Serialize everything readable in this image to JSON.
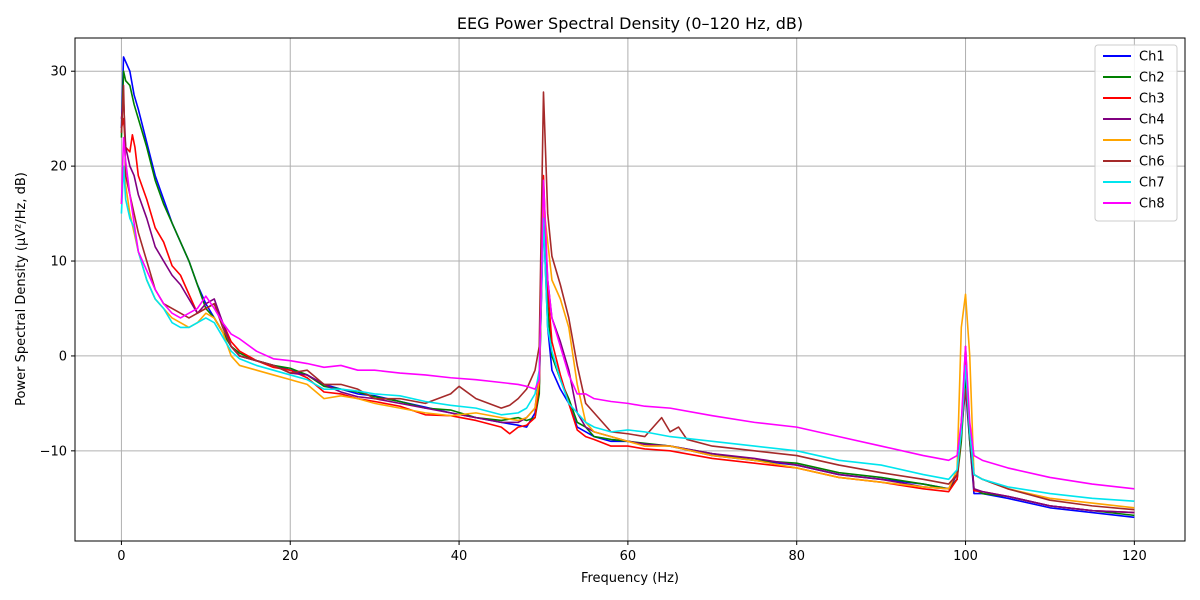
{
  "chart_data": {
    "type": "line",
    "title": "EEG Power Spectral Density (0–120 Hz, dB)",
    "xlabel": "Frequency (Hz)",
    "ylabel": "Power Spectral Density (µV²/Hz, dB)",
    "xlim": [
      -5.5,
      126
    ],
    "ylim": [
      -19.5,
      33.5
    ],
    "xticks": [
      0,
      20,
      40,
      60,
      80,
      100,
      120
    ],
    "xtick_labels": [
      "0",
      "20",
      "40",
      "60",
      "80",
      "100",
      "120"
    ],
    "yticks": [
      -10,
      0,
      10,
      20,
      30
    ],
    "ytick_labels": [
      "−10",
      "0",
      "10",
      "20",
      "30"
    ],
    "grid": true,
    "legend_position": "top-right",
    "series": [
      {
        "name": "Ch1",
        "color": "#0000ff",
        "x": [
          0,
          0.25,
          0.5,
          1,
          1.5,
          2,
          3,
          4,
          5,
          6,
          7,
          8,
          9,
          10,
          11,
          12,
          13,
          14,
          16,
          18,
          20,
          22,
          24,
          26,
          28,
          30,
          33,
          36,
          39,
          42,
          45,
          47,
          48,
          49,
          49.5,
          50,
          50.5,
          51,
          52,
          53,
          54,
          55,
          56,
          58,
          60,
          62,
          65,
          70,
          75,
          80,
          85,
          90,
          95,
          98,
          99,
          99.5,
          100,
          100.5,
          101,
          102,
          105,
          110,
          115,
          120
        ],
        "y": [
          24,
          31.5,
          31,
          30,
          27.5,
          26,
          22.5,
          19,
          16.5,
          14,
          12,
          10,
          7.5,
          5.5,
          4,
          2.5,
          1,
          0,
          -0.5,
          -1,
          -1.5,
          -2,
          -3,
          -3.5,
          -4,
          -4.2,
          -4.8,
          -5.4,
          -6,
          -6.5,
          -7,
          -7.3,
          -7.5,
          -6,
          -3,
          14.5,
          3,
          -1.5,
          -3.5,
          -5,
          -7.5,
          -8,
          -8.5,
          -9,
          -9,
          -9.3,
          -9.5,
          -10.5,
          -11,
          -11.5,
          -12.5,
          -13,
          -13.5,
          -14,
          -13,
          -8,
          -3.5,
          -9,
          -14.5,
          -14.5,
          -15,
          -16,
          -16.5,
          -17
        ]
      },
      {
        "name": "Ch2",
        "color": "#008000",
        "x": [
          0,
          0.25,
          0.5,
          1,
          1.5,
          2,
          3,
          4,
          5,
          6,
          7,
          8,
          9,
          10,
          11,
          12,
          13,
          14,
          16,
          18,
          20,
          22,
          24,
          26,
          28,
          30,
          33,
          36,
          39,
          42,
          45,
          47,
          48,
          49,
          49.5,
          50,
          50.5,
          51,
          52,
          53,
          54,
          55,
          56,
          58,
          60,
          62,
          65,
          70,
          75,
          80,
          85,
          90,
          95,
          98,
          99,
          99.5,
          100,
          100.5,
          101,
          102,
          105,
          110,
          115,
          120
        ],
        "y": [
          23,
          30,
          29,
          28.5,
          26.5,
          25,
          22,
          18.5,
          16,
          14,
          12,
          10,
          7.5,
          5,
          4,
          2.5,
          1,
          0.3,
          -0.5,
          -1,
          -1.3,
          -2,
          -3.2,
          -3.5,
          -3.8,
          -4.3,
          -4.8,
          -5.5,
          -5.7,
          -6.5,
          -6.8,
          -6.5,
          -6.8,
          -6.5,
          -4,
          17,
          5,
          0,
          -2.5,
          -4.5,
          -7,
          -7.5,
          -8.5,
          -8.8,
          -9,
          -9.2,
          -9.5,
          -10.3,
          -11,
          -11.3,
          -12.3,
          -12.8,
          -13.5,
          -14,
          -13,
          -9,
          -2,
          -9,
          -14,
          -14.5,
          -14.8,
          -15.8,
          -16.3,
          -16.8
        ]
      },
      {
        "name": "Ch3",
        "color": "#ff0000",
        "x": [
          0,
          0.25,
          0.5,
          1,
          1.3,
          1.6,
          2,
          3,
          4,
          5,
          6,
          7,
          8,
          9,
          10,
          11,
          12,
          13,
          14,
          16,
          18,
          20,
          22,
          24,
          26,
          28,
          30,
          33,
          36,
          39,
          42,
          45,
          46,
          47,
          48,
          49,
          49.5,
          50,
          50.5,
          51,
          52,
          53,
          54,
          55,
          56,
          58,
          60,
          62,
          65,
          70,
          75,
          80,
          85,
          90,
          95,
          98,
          99,
          99.5,
          100,
          100.5,
          101,
          102,
          105,
          110,
          115,
          120
        ],
        "y": [
          24,
          25,
          22,
          21.5,
          23.3,
          22,
          19,
          16.5,
          13.5,
          12,
          9.5,
          8.5,
          6.5,
          4.5,
          5,
          5.5,
          3.5,
          1.5,
          0.5,
          -0.5,
          -1.2,
          -1.5,
          -2.3,
          -3.8,
          -4,
          -4.5,
          -4.8,
          -5.3,
          -6.2,
          -6.3,
          -6.8,
          -7.5,
          -8.2,
          -7.5,
          -7.3,
          -6.5,
          -3,
          19,
          7,
          1.5,
          -2,
          -5,
          -7.8,
          -8.5,
          -8.8,
          -9.5,
          -9.5,
          -9.8,
          -10,
          -10.8,
          -11.3,
          -11.8,
          -12.8,
          -13.3,
          -14,
          -14.3,
          -13,
          -8,
          1,
          -8,
          -14.2,
          -14.3,
          -14.8,
          -15.8,
          -16.3,
          -16.5
        ]
      },
      {
        "name": "Ch4",
        "color": "#800080",
        "x": [
          0,
          0.25,
          0.5,
          1,
          1.5,
          2,
          3,
          4,
          5,
          6,
          7,
          8,
          9,
          10,
          11,
          12,
          13,
          14,
          16,
          18,
          20,
          22,
          24,
          26,
          28,
          30,
          33,
          36,
          39,
          42,
          45,
          47,
          48,
          49,
          49.5,
          50,
          50.5,
          51,
          52,
          53,
          54,
          55,
          56,
          58,
          60,
          62,
          65,
          70,
          75,
          80,
          85,
          90,
          95,
          98,
          99,
          99.5,
          100,
          100.5,
          101,
          102,
          105,
          110,
          115,
          120
        ],
        "y": [
          25,
          27,
          22,
          20,
          19,
          17,
          14.5,
          11.5,
          10,
          8.5,
          7.5,
          6,
          4.5,
          5.5,
          6,
          3.5,
          1,
          0,
          -0.5,
          -1,
          -1.8,
          -2,
          -3,
          -3.8,
          -4.3,
          -4.5,
          -5,
          -5.5,
          -6,
          -6.5,
          -7,
          -7,
          -6.5,
          -5.5,
          -2,
          16,
          8,
          4,
          1.5,
          -1.5,
          -6,
          -7.5,
          -8,
          -8.5,
          -9,
          -9.3,
          -9.5,
          -10.3,
          -10.8,
          -11.5,
          -12.5,
          -13,
          -13.8,
          -14,
          -12.5,
          -7,
          -1,
          -8,
          -14,
          -14.3,
          -14.8,
          -15.8,
          -16.3,
          -16.5
        ]
      },
      {
        "name": "Ch5",
        "color": "#ffa500",
        "x": [
          0,
          0.25,
          0.5,
          1,
          1.5,
          2,
          3,
          4,
          5,
          6,
          7,
          8,
          9,
          10,
          11,
          12,
          13,
          14,
          16,
          18,
          20,
          22,
          24,
          26,
          28,
          30,
          33,
          36,
          39,
          42,
          45,
          47,
          48,
          49,
          49.5,
          50,
          50.5,
          51,
          52,
          53,
          54,
          55,
          56,
          58,
          60,
          62,
          65,
          70,
          75,
          80,
          85,
          90,
          95,
          98,
          99,
          99.5,
          100,
          100.5,
          101,
          102,
          105,
          110,
          115,
          120
        ],
        "y": [
          16,
          20,
          18,
          15,
          13,
          11,
          8,
          6,
          5,
          4,
          3.5,
          3,
          3.5,
          4.5,
          4,
          2.5,
          0,
          -1,
          -1.5,
          -2,
          -2.5,
          -3,
          -4.5,
          -4.2,
          -4.5,
          -5,
          -5.5,
          -6,
          -6.3,
          -6,
          -6.5,
          -6.8,
          -6.5,
          -5.5,
          -2.5,
          16,
          12,
          8,
          6,
          3,
          -3,
          -7,
          -8,
          -8.5,
          -9,
          -9.5,
          -9.5,
          -10.5,
          -11,
          -11.8,
          -12.8,
          -13.3,
          -13.8,
          -14,
          -12,
          3,
          6.5,
          0,
          -12.5,
          -13,
          -14,
          -15,
          -15.5,
          -16
        ]
      },
      {
        "name": "Ch6",
        "color": "#a52a2a",
        "x": [
          0,
          0.25,
          0.5,
          1,
          1.5,
          2,
          3,
          4,
          5,
          6,
          7,
          8,
          9,
          10,
          11,
          12,
          13,
          14,
          16,
          18,
          20,
          22,
          24,
          26,
          28,
          30,
          33,
          36,
          39,
          40,
          42,
          45,
          46,
          47,
          48,
          49,
          49.5,
          50,
          50.5,
          51,
          52,
          53,
          54,
          55,
          56,
          58,
          60,
          62,
          63,
          64,
          65,
          66,
          67,
          70,
          75,
          80,
          85,
          90,
          95,
          98,
          99,
          99.5,
          100,
          100.5,
          101,
          102,
          105,
          110,
          115,
          120
        ],
        "y": [
          23.5,
          28.5,
          19,
          17,
          15,
          13,
          10,
          7,
          5.5,
          5,
          4.5,
          4,
          4.5,
          5,
          5.5,
          3,
          1,
          0,
          -0.5,
          -1,
          -1.8,
          -1.5,
          -3,
          -3,
          -3.5,
          -4.5,
          -4.5,
          -5,
          -4,
          -3.2,
          -4.5,
          -5.5,
          -5.2,
          -4.5,
          -3.5,
          -1.5,
          1,
          27.8,
          15,
          10.5,
          7.5,
          4,
          -1,
          -5,
          -6,
          -8,
          -8.2,
          -8.5,
          -7.5,
          -6.5,
          -8,
          -7.5,
          -8.8,
          -9.5,
          -10,
          -10.5,
          -11.5,
          -12.3,
          -13,
          -13.5,
          -12.5,
          -7.5,
          -3.5,
          -8,
          -12.5,
          -13,
          -14,
          -15.2,
          -15.8,
          -16.2
        ]
      },
      {
        "name": "Ch7",
        "color": "#00e5ee",
        "x": [
          0,
          0.25,
          0.5,
          1,
          1.5,
          2,
          3,
          4,
          5,
          6,
          7,
          8,
          9,
          10,
          11,
          12,
          13,
          14,
          16,
          18,
          20,
          22,
          24,
          26,
          28,
          30,
          33,
          36,
          39,
          42,
          45,
          47,
          48,
          49,
          49.5,
          50,
          50.5,
          51,
          52,
          53,
          54,
          55,
          56,
          58,
          60,
          62,
          65,
          70,
          75,
          80,
          85,
          90,
          95,
          98,
          99,
          99.5,
          100,
          100.5,
          101,
          102,
          105,
          110,
          115,
          120
        ],
        "y": [
          15,
          20,
          16.5,
          14.5,
          13.5,
          11,
          8,
          6,
          5,
          3.5,
          3,
          3,
          3.5,
          4,
          3.5,
          2,
          0.5,
          -0.3,
          -1,
          -1.5,
          -2,
          -2.5,
          -3.5,
          -3.5,
          -3.7,
          -4,
          -4.2,
          -4.8,
          -5.2,
          -5.5,
          -6.2,
          -6,
          -5.5,
          -4,
          -1.5,
          14.5,
          3,
          0.5,
          -2.5,
          -5,
          -6,
          -7,
          -7.5,
          -8,
          -7.8,
          -8,
          -8.5,
          -9,
          -9.5,
          -10,
          -11,
          -11.5,
          -12.5,
          -13,
          -12,
          -8,
          -1,
          -8,
          -12.5,
          -13,
          -13.8,
          -14.5,
          -15,
          -15.3
        ]
      },
      {
        "name": "Ch8",
        "color": "#ff00ff",
        "x": [
          0,
          0.25,
          0.5,
          1,
          1.5,
          2,
          3,
          4,
          5,
          6,
          7,
          8,
          9,
          10,
          11,
          12,
          13,
          14,
          16,
          18,
          20,
          22,
          24,
          26,
          28,
          30,
          33,
          36,
          39,
          42,
          45,
          47,
          48,
          49,
          49.5,
          50,
          50.5,
          51,
          52,
          53,
          54,
          55,
          56,
          58,
          60,
          62,
          65,
          70,
          75,
          80,
          85,
          90,
          95,
          98,
          99,
          99.5,
          100,
          100.5,
          101,
          102,
          105,
          110,
          115,
          120
        ],
        "y": [
          16,
          23,
          20.5,
          17,
          14,
          11,
          9,
          7,
          5.5,
          4.5,
          4,
          4.5,
          5,
          6.3,
          5,
          3.5,
          2.3,
          1.8,
          0.5,
          -0.3,
          -0.5,
          -0.8,
          -1.2,
          -1,
          -1.5,
          -1.5,
          -1.8,
          -2,
          -2.3,
          -2.5,
          -2.8,
          -3,
          -3.2,
          -3.5,
          -2.5,
          18.5,
          8,
          4,
          1,
          -2,
          -4,
          -4,
          -4.5,
          -4.8,
          -5,
          -5.3,
          -5.5,
          -6.3,
          -7,
          -7.5,
          -8.5,
          -9.5,
          -10.5,
          -11,
          -10.5,
          -7,
          1,
          -7,
          -10.5,
          -11,
          -11.8,
          -12.8,
          -13.5,
          -14
        ]
      }
    ]
  }
}
